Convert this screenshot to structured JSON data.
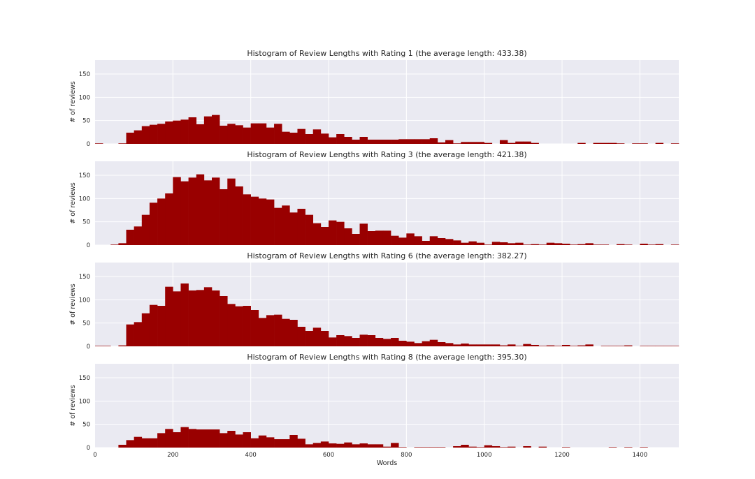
{
  "chart_data": [
    {
      "type": "bar",
      "title": "Histogram of Review Lengths with Rating 1 (the average length: 433.38)",
      "xlabel": "",
      "ylabel": "# of reviews",
      "xlim": [
        0,
        1500
      ],
      "ylim": [
        0,
        180
      ],
      "bin_width": 20,
      "yticks": [
        0,
        50,
        100,
        150
      ],
      "xticks": [],
      "grid": true,
      "values": [
        1,
        0,
        0,
        1,
        24,
        29,
        38,
        41,
        43,
        48,
        50,
        52,
        57,
        42,
        59,
        62,
        39,
        43,
        40,
        35,
        44,
        44,
        35,
        43,
        26,
        24,
        32,
        21,
        31,
        22,
        14,
        21,
        15,
        9,
        15,
        9,
        9,
        9,
        9,
        10,
        10,
        10,
        10,
        12,
        3,
        8,
        1,
        4,
        4,
        4,
        2,
        0,
        8,
        2,
        5,
        5,
        2,
        0,
        0,
        0,
        0,
        0,
        2,
        0,
        2,
        2,
        2,
        1,
        0,
        1,
        1,
        0,
        2,
        0,
        1
      ]
    },
    {
      "type": "bar",
      "title": "Histogram of Review Lengths with Rating 3 (the average length: 421.38)",
      "xlabel": "",
      "ylabel": "# of reviews",
      "xlim": [
        0,
        1500
      ],
      "ylim": [
        0,
        180
      ],
      "bin_width": 20,
      "yticks": [
        0,
        50,
        100,
        150
      ],
      "xticks": [],
      "grid": true,
      "values": [
        0,
        0,
        1,
        4,
        33,
        40,
        65,
        91,
        100,
        111,
        146,
        137,
        145,
        152,
        139,
        145,
        120,
        143,
        126,
        109,
        104,
        100,
        98,
        80,
        85,
        70,
        78,
        65,
        47,
        39,
        53,
        50,
        36,
        24,
        46,
        30,
        31,
        31,
        20,
        16,
        25,
        19,
        9,
        19,
        15,
        13,
        10,
        5,
        8,
        5,
        1,
        7,
        6,
        4,
        5,
        1,
        2,
        1,
        5,
        4,
        3,
        1,
        2,
        4,
        1,
        1,
        0,
        2,
        1,
        0,
        3,
        1,
        2,
        0,
        1
      ]
    },
    {
      "type": "bar",
      "title": "Histogram of Review Lengths with Rating 6 (the average length: 382.27)",
      "xlabel": "",
      "ylabel": "# of reviews",
      "xlim": [
        0,
        1500
      ],
      "ylim": [
        0,
        180
      ],
      "bin_width": 20,
      "yticks": [
        0,
        50,
        100,
        150
      ],
      "xticks": [],
      "grid": true,
      "values": [
        1,
        1,
        0,
        2,
        47,
        52,
        71,
        89,
        87,
        128,
        118,
        135,
        120,
        121,
        127,
        120,
        108,
        91,
        86,
        87,
        78,
        61,
        67,
        68,
        59,
        57,
        42,
        33,
        40,
        33,
        19,
        24,
        22,
        18,
        25,
        24,
        18,
        16,
        18,
        12,
        10,
        7,
        11,
        14,
        9,
        7,
        4,
        6,
        4,
        4,
        4,
        4,
        2,
        4,
        1,
        5,
        3,
        1,
        2,
        1,
        3,
        1,
        2,
        4,
        0,
        1,
        1,
        1,
        2,
        0,
        1,
        1,
        1,
        1,
        1
      ]
    },
    {
      "type": "bar",
      "title": "Histogram of Review Lengths with Rating 8 (the average length: 395.30)",
      "xlabel": "Words",
      "ylabel": "# of reviews",
      "xlim": [
        0,
        1500
      ],
      "ylim": [
        0,
        180
      ],
      "bin_width": 20,
      "yticks": [
        0,
        50,
        100,
        150
      ],
      "xticks": [
        0,
        200,
        400,
        600,
        800,
        1000,
        1200,
        1400
      ],
      "grid": true,
      "values": [
        0,
        0,
        0,
        6,
        16,
        23,
        20,
        20,
        31,
        40,
        33,
        44,
        40,
        39,
        39,
        39,
        31,
        36,
        28,
        33,
        20,
        26,
        22,
        18,
        18,
        27,
        19,
        7,
        10,
        13,
        9,
        8,
        11,
        7,
        9,
        7,
        7,
        2,
        10,
        1,
        0,
        1,
        1,
        1,
        1,
        0,
        3,
        6,
        2,
        1,
        5,
        3,
        1,
        2,
        0,
        3,
        0,
        2,
        0,
        0,
        1,
        0,
        0,
        0,
        0,
        0,
        1,
        0,
        1,
        0,
        1,
        0,
        0,
        0,
        0
      ]
    }
  ],
  "colors": {
    "bar": "#990000",
    "axes_bg": "#EAEAF2",
    "grid": "#ffffff"
  }
}
